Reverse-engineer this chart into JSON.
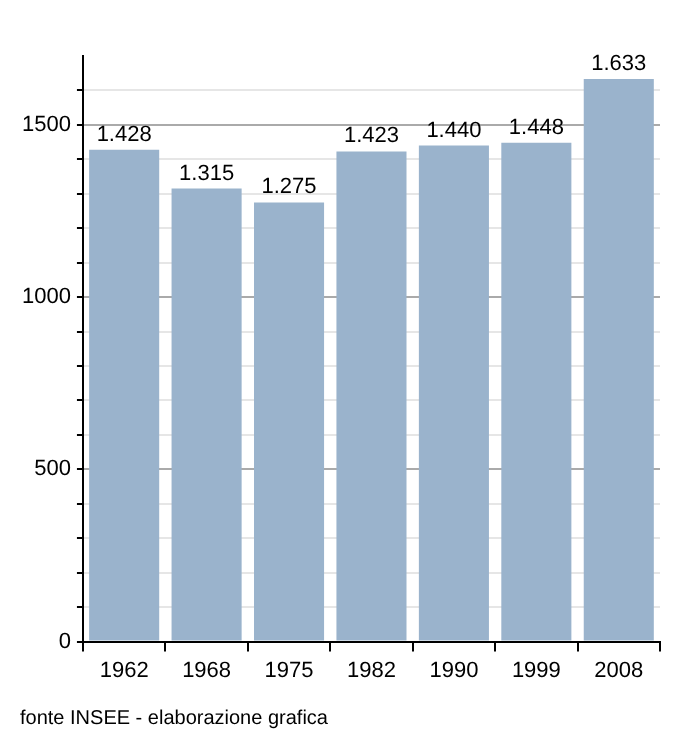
{
  "chart_data": {
    "type": "bar",
    "categories": [
      "1962",
      "1968",
      "1975",
      "1982",
      "1990",
      "1999",
      "2008"
    ],
    "values": [
      1428,
      1315,
      1275,
      1423,
      1440,
      1448,
      1633
    ],
    "value_labels": [
      "1.428",
      "1.315",
      "1.275",
      "1.423",
      "1.440",
      "1.448",
      "1.633"
    ],
    "color": "#9ab3cc",
    "ylim": [
      0,
      1700
    ],
    "yticks": [
      0,
      {
        "value": 100,
        "label": null
      },
      {
        "value": 200,
        "label": null
      },
      {
        "value": 300,
        "label": null
      },
      {
        "value": 400,
        "label": null
      },
      500,
      {
        "value": 600,
        "label": null
      },
      {
        "value": 700,
        "label": null
      },
      {
        "value": 800,
        "label": null
      },
      {
        "value": 900,
        "label": null
      },
      1000,
      {
        "value": 1100,
        "label": null
      },
      {
        "value": 1200,
        "label": null
      },
      {
        "value": 1300,
        "label": null
      },
      {
        "value": 1400,
        "label": null
      },
      1500,
      {
        "value": 1600,
        "label": null
      }
    ],
    "grid": true,
    "annotations": [
      "fonte INSEE - elaborazione grafica"
    ]
  }
}
